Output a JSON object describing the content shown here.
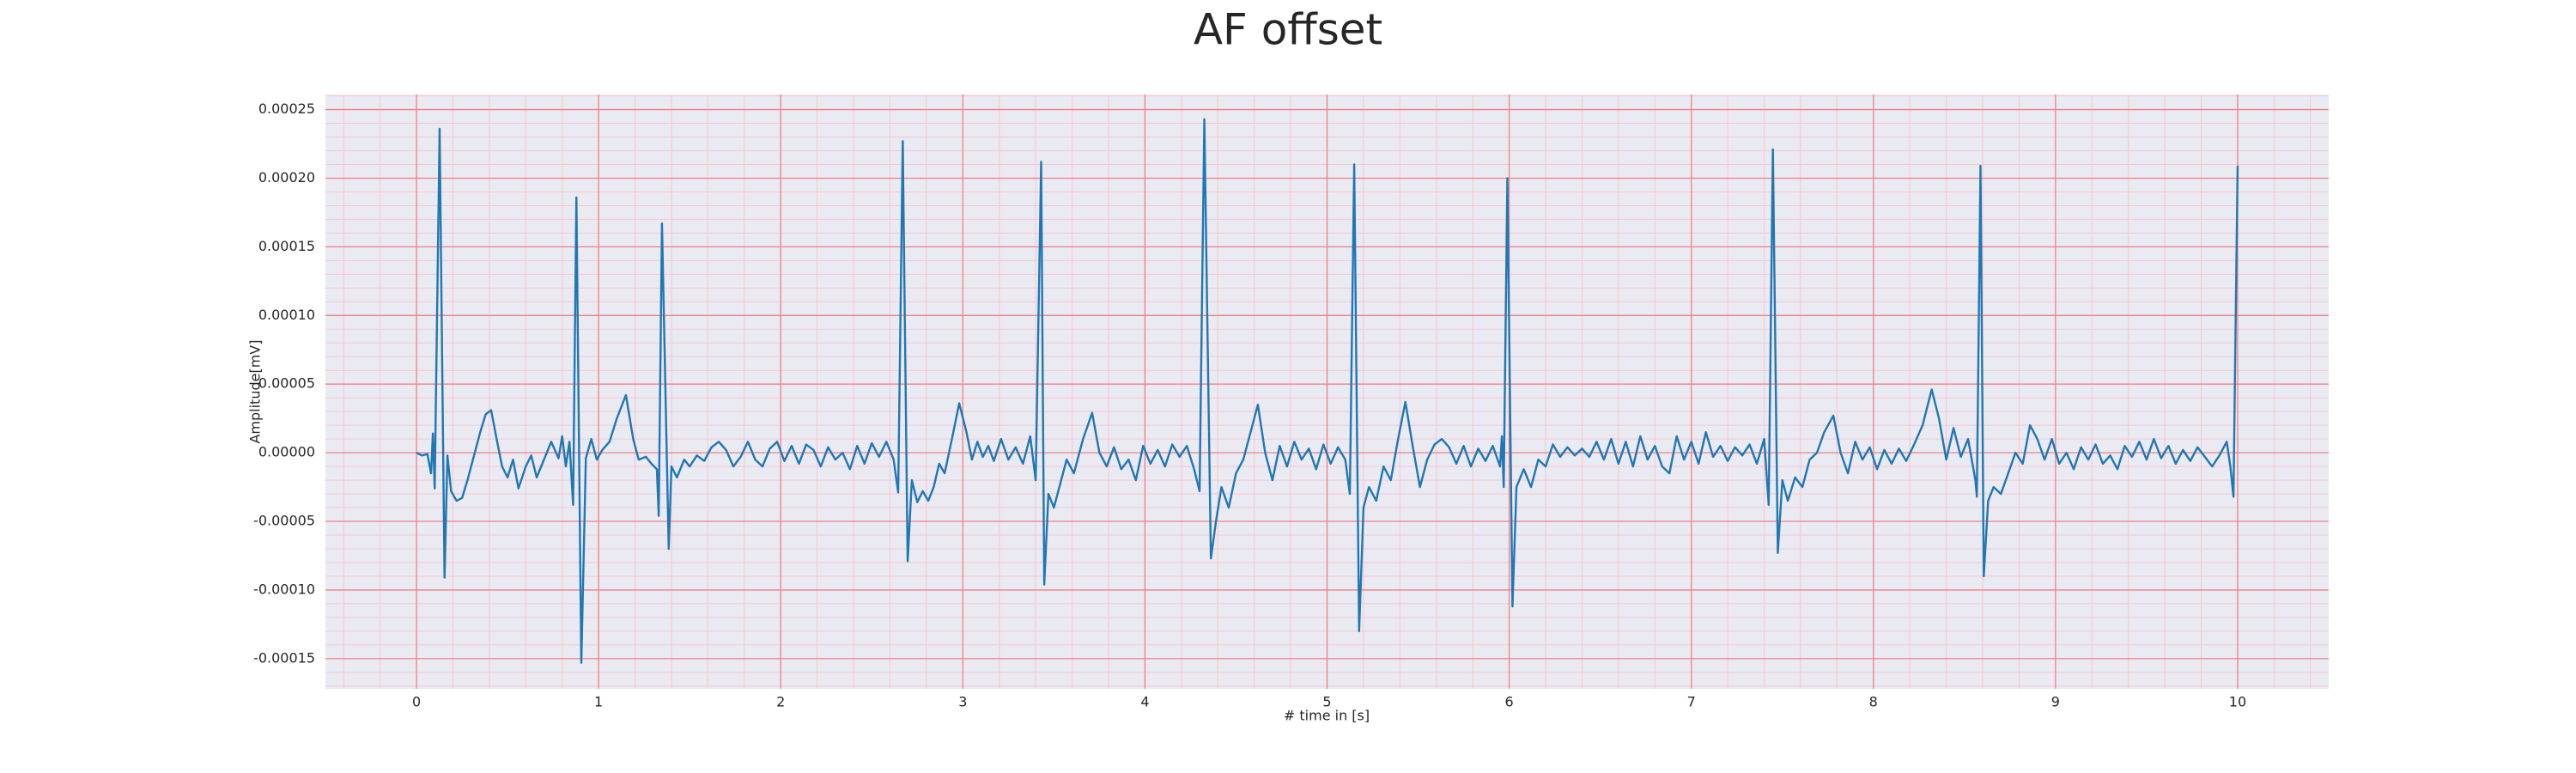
{
  "chart_data": {
    "type": "line",
    "title": "AF offset",
    "xlabel": "# time in [s]",
    "ylabel": "Amplitude[mV]",
    "color": "#1f77b4",
    "grid": true,
    "grid_color": "#f08080",
    "minor_grid": true,
    "minor_grid_color": "#f7c6cf",
    "background": "#eaeaf2",
    "xlim": [
      -0.5,
      10.5
    ],
    "ylim": [
      -0.000172,
      0.000261
    ],
    "xticks": [
      0,
      1,
      2,
      3,
      4,
      5,
      6,
      7,
      8,
      9,
      10
    ],
    "yticks": [
      {
        "value": -0.00015,
        "label": "-0.00015"
      },
      {
        "value": -0.0001,
        "label": "-0.00010"
      },
      {
        "value": -5e-05,
        "label": "-0.00005"
      },
      {
        "value": 0,
        "label": "0.00000"
      },
      {
        "value": 5e-05,
        "label": "0.00005"
      },
      {
        "value": 0.0001,
        "label": "0.00010"
      },
      {
        "value": 0.00015,
        "label": "0.00015"
      },
      {
        "value": 0.0002,
        "label": "0.00020"
      },
      {
        "value": 0.00025,
        "label": "0.00025"
      }
    ],
    "x": [
      0,
      0.03,
      0.06,
      0.08,
      0.09,
      0.1,
      0.127,
      0.154,
      0.17,
      0.19,
      0.22,
      0.25,
      0.28,
      0.31,
      0.35,
      0.38,
      0.41,
      0.44,
      0.47,
      0.5,
      0.53,
      0.56,
      0.6,
      0.63,
      0.66,
      0.7,
      0.74,
      0.78,
      0.8,
      0.82,
      0.84,
      0.86,
      0.878,
      0.905,
      0.93,
      0.96,
      0.99,
      1.02,
      1.06,
      1.1,
      1.15,
      1.19,
      1.22,
      1.26,
      1.29,
      1.32,
      1.33,
      1.348,
      1.385,
      1.4,
      1.43,
      1.47,
      1.5,
      1.54,
      1.58,
      1.62,
      1.66,
      1.7,
      1.74,
      1.78,
      1.82,
      1.86,
      1.9,
      1.94,
      1.98,
      2.02,
      2.06,
      2.1,
      2.14,
      2.18,
      2.22,
      2.26,
      2.3,
      2.34,
      2.38,
      2.42,
      2.46,
      2.5,
      2.54,
      2.58,
      2.62,
      2.645,
      2.67,
      2.697,
      2.72,
      2.75,
      2.78,
      2.81,
      2.84,
      2.87,
      2.9,
      2.94,
      2.98,
      3.02,
      3.05,
      3.08,
      3.11,
      3.14,
      3.17,
      3.21,
      3.25,
      3.29,
      3.33,
      3.37,
      3.4,
      3.43,
      3.447,
      3.47,
      3.5,
      3.53,
      3.57,
      3.61,
      3.66,
      3.71,
      3.75,
      3.79,
      3.83,
      3.87,
      3.91,
      3.95,
      3.99,
      4.03,
      4.07,
      4.11,
      4.15,
      4.19,
      4.23,
      4.27,
      4.3,
      4.326,
      4.362,
      4.39,
      4.42,
      4.46,
      4.5,
      4.54,
      4.58,
      4.62,
      4.66,
      4.7,
      4.74,
      4.78,
      4.82,
      4.86,
      4.9,
      4.94,
      4.98,
      5.02,
      5.06,
      5.1,
      5.125,
      5.149,
      5.176,
      5.2,
      5.23,
      5.27,
      5.31,
      5.35,
      5.39,
      5.43,
      5.47,
      5.51,
      5.55,
      5.59,
      5.63,
      5.67,
      5.71,
      5.75,
      5.79,
      5.83,
      5.87,
      5.91,
      5.95,
      5.96,
      5.97,
      5.99,
      6.018,
      6.04,
      6.08,
      6.12,
      6.16,
      6.2,
      6.24,
      6.28,
      6.32,
      6.36,
      6.4,
      6.44,
      6.48,
      6.52,
      6.56,
      6.6,
      6.64,
      6.68,
      6.72,
      6.76,
      6.8,
      6.84,
      6.88,
      6.92,
      6.96,
      7,
      7.04,
      7.08,
      7.12,
      7.16,
      7.2,
      7.24,
      7.28,
      7.32,
      7.36,
      7.4,
      7.425,
      7.448,
      7.475,
      7.5,
      7.53,
      7.57,
      7.61,
      7.65,
      7.69,
      7.73,
      7.78,
      7.82,
      7.86,
      7.9,
      7.94,
      7.98,
      8.02,
      8.06,
      8.1,
      8.14,
      8.18,
      8.22,
      8.27,
      8.32,
      8.36,
      8.4,
      8.44,
      8.48,
      8.52,
      8.56,
      8.568,
      8.588,
      8.606,
      8.63,
      8.66,
      8.7,
      8.74,
      8.78,
      8.82,
      8.86,
      8.9,
      8.94,
      8.98,
      9.02,
      9.06,
      9.1,
      9.14,
      9.18,
      9.22,
      9.26,
      9.3,
      9.34,
      9.38,
      9.42,
      9.46,
      9.5,
      9.54,
      9.58,
      9.62,
      9.66,
      9.7,
      9.74,
      9.78,
      9.82,
      9.86,
      9.9,
      9.94,
      9.96,
      9.977,
      10
    ],
    "values": [
      0,
      -2e-06,
      -1e-06,
      -1.5e-05,
      1.4e-05,
      -2.6e-05,
      0.000236,
      -9.1e-05,
      -2e-06,
      -2.8e-05,
      -3.5e-05,
      -3.3e-05,
      -2e-05,
      -5e-06,
      1.5e-05,
      2.8e-05,
      3.1e-05,
      1e-05,
      -1e-05,
      -1.8e-05,
      -5e-06,
      -2.6e-05,
      -1e-05,
      -2e-06,
      -1.8e-05,
      -5e-06,
      8e-06,
      -4e-06,
      1.2e-05,
      -1e-05,
      8e-06,
      -3.8e-05,
      0.000186,
      -0.000153,
      -4e-06,
      1e-05,
      -5e-06,
      2e-06,
      8e-06,
      2.5e-05,
      4.2e-05,
      1e-05,
      -5e-06,
      -3e-06,
      -8e-06,
      -1.2e-05,
      -4.6e-05,
      0.000167,
      -7e-05,
      -1e-05,
      -1.8e-05,
      -5e-06,
      -1e-05,
      -2e-06,
      -6e-06,
      4e-06,
      8e-06,
      2e-06,
      -1e-05,
      -3e-06,
      8e-06,
      -5e-06,
      -1e-05,
      3e-06,
      8e-06,
      -6e-06,
      5e-06,
      -8e-06,
      6e-06,
      2e-06,
      -1e-05,
      4e-06,
      -5e-06,
      0,
      -1.2e-05,
      5e-06,
      -8e-06,
      7e-06,
      -3e-06,
      8e-06,
      -5e-06,
      -2.9e-05,
      0.000227,
      -7.9e-05,
      -2e-05,
      -3.6e-05,
      -2.8e-05,
      -3.5e-05,
      -2.5e-05,
      -8e-06,
      -1.5e-05,
      1e-05,
      3.6e-05,
      1.5e-05,
      -5e-06,
      8e-06,
      -3e-06,
      5e-06,
      -6e-06,
      1e-05,
      -5e-06,
      4e-06,
      -8e-06,
      1.2e-05,
      -2e-05,
      0.000212,
      -9.6e-05,
      -3e-05,
      -4e-05,
      -2.5e-05,
      -5e-06,
      -1.5e-05,
      1e-05,
      2.9e-05,
      0,
      -1e-05,
      4e-06,
      -1.2e-05,
      -5e-06,
      -2e-05,
      5e-06,
      -8e-06,
      2e-06,
      -1e-05,
      6e-06,
      -3e-06,
      5e-06,
      -1.2e-05,
      -2.8e-05,
      0.000243,
      -7.7e-05,
      -5e-05,
      -2.5e-05,
      -4e-05,
      -1.5e-05,
      -5e-06,
      1.5e-05,
      3.5e-05,
      0,
      -2e-05,
      5e-06,
      -1e-05,
      8e-06,
      -5e-06,
      3e-06,
      -1.2e-05,
      6e-06,
      -8e-06,
      4e-06,
      -5e-06,
      -3e-05,
      0.00021,
      -0.00013,
      -4e-05,
      -2.5e-05,
      -3.5e-05,
      -1e-05,
      -2e-05,
      1e-05,
      3.7e-05,
      5e-06,
      -2.5e-05,
      -5e-06,
      6e-06,
      1e-05,
      4e-06,
      -8e-06,
      5e-06,
      -1e-05,
      3e-06,
      -6e-06,
      5e-06,
      -1e-05,
      1.2e-05,
      -2.5e-05,
      0.0002,
      -0.000112,
      -2.5e-05,
      -1.2e-05,
      -2.5e-05,
      -5e-06,
      -1e-05,
      6e-06,
      -3e-06,
      4e-06,
      -2e-06,
      3e-06,
      -3e-06,
      8e-06,
      -5e-06,
      1e-05,
      -8e-06,
      8e-06,
      -1e-05,
      1.2e-05,
      -5e-06,
      5e-06,
      -1e-05,
      -1.5e-05,
      1.2e-05,
      -5e-06,
      8e-06,
      -8e-06,
      1.5e-05,
      -3e-06,
      5e-06,
      -6e-06,
      4e-06,
      -2e-06,
      6e-06,
      -8e-06,
      1e-05,
      -3.8e-05,
      0.000221,
      -7.3e-05,
      -2e-05,
      -3.5e-05,
      -1.8e-05,
      -2.5e-05,
      -5e-06,
      0,
      1.5e-05,
      2.7e-05,
      0,
      -1.5e-05,
      8e-06,
      -5e-06,
      4e-06,
      -1.2e-05,
      2e-06,
      -8e-06,
      3e-06,
      -6e-06,
      5e-06,
      2e-05,
      4.6e-05,
      2.5e-05,
      -5e-06,
      1.8e-05,
      -3e-06,
      1e-05,
      -2e-05,
      -3.2e-05,
      0.000209,
      -9e-05,
      -3.5e-05,
      -2.5e-05,
      -3e-05,
      -1.5e-05,
      0,
      -8e-06,
      2e-05,
      1e-05,
      -5e-06,
      1e-05,
      -8e-06,
      0,
      -1.2e-05,
      4e-06,
      -5e-06,
      6e-06,
      -8e-06,
      -2e-06,
      -1.2e-05,
      5e-06,
      -3e-06,
      8e-06,
      -5e-06,
      1e-05,
      -4e-06,
      5e-06,
      -8e-06,
      2e-06,
      -6e-06,
      4e-06,
      -3e-06,
      -1e-05,
      -2e-06,
      8e-06,
      -1e-05,
      -3.2e-05,
      0.000209
    ]
  }
}
